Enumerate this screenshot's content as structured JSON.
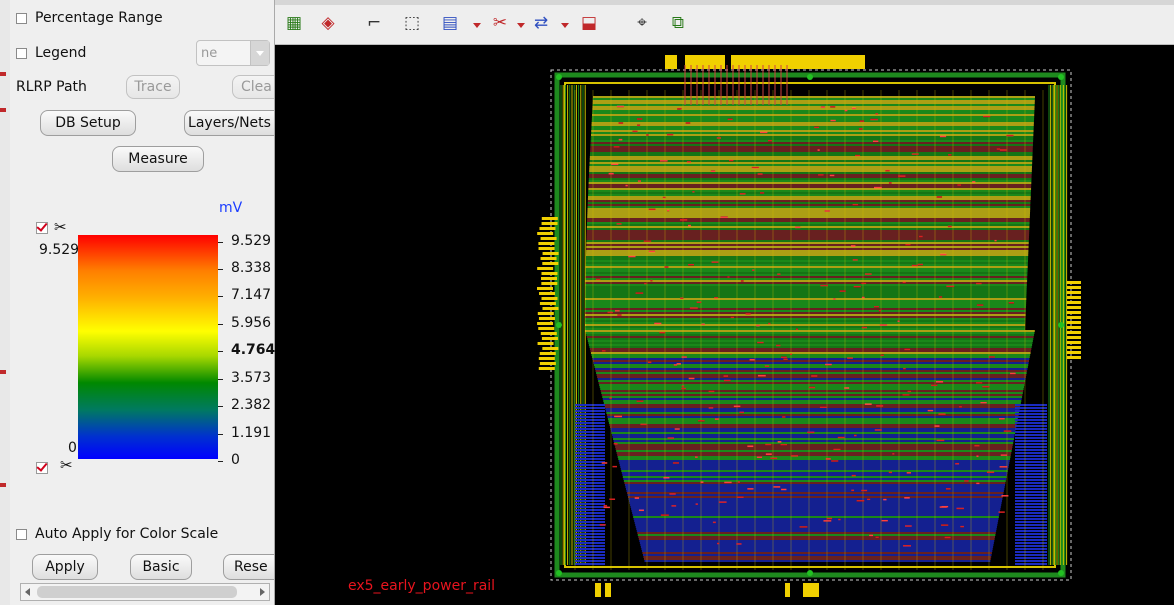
{
  "panel": {
    "percentage_range_label": "Percentage Range",
    "legend_label": "Legend",
    "legend_combo_value": "ne",
    "rlrp_path_label": "RLRP Path",
    "trace_label": "Trace",
    "clear_label": "Clea",
    "db_setup_label": "DB Setup",
    "layers_nets_label": "Layers/Nets",
    "measure_label": "Measure",
    "unit_label": "mV",
    "scale_max_left": "9.529",
    "scale_min_left": "0",
    "scale_ticks": [
      "9.529",
      "8.338",
      "7.147",
      "5.956",
      "4.764",
      "3.573",
      "2.382",
      "1.191",
      "0"
    ],
    "auto_apply_label": "Auto Apply for Color Scale",
    "apply_label": "Apply",
    "basic_label": "Basic",
    "reset_label": "Rese"
  },
  "toolbar": {
    "icons": [
      "add-net-icon",
      "highlight-icon",
      "probe-icon",
      "select-arrow-icon",
      "region-icon",
      "cut-icon",
      "stretch-icon",
      "move-icon",
      "query-icon",
      "flight-line-icon"
    ]
  },
  "canvas": {
    "caption": "ex5_early_power_rail"
  },
  "colors": {
    "caption": "#e8141e",
    "unit": "#1a3cff",
    "pin": "#f0d000"
  }
}
